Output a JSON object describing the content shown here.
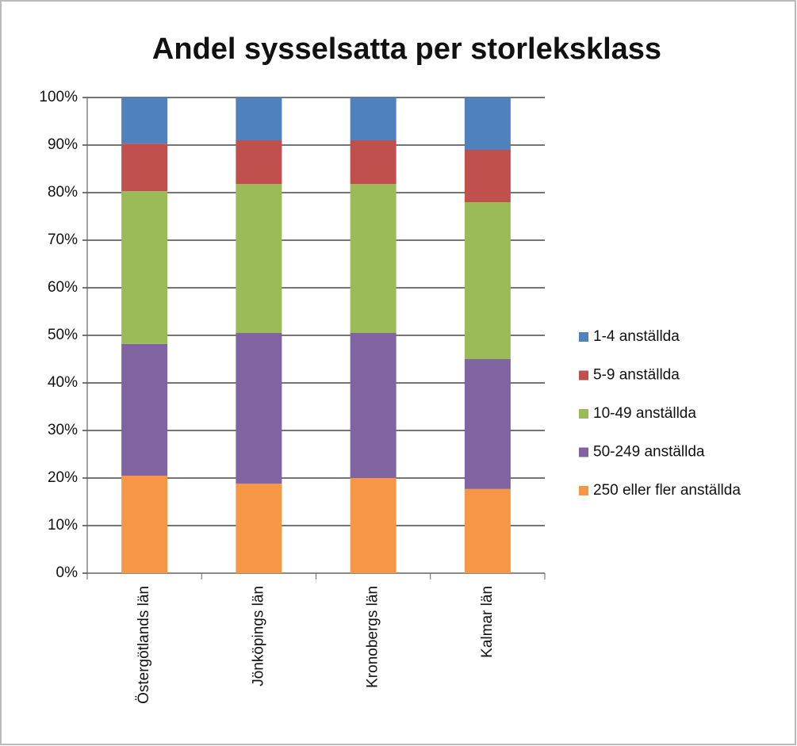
{
  "chart_data": {
    "type": "stacked_bar",
    "title": "Andel sysselsatta per storleksklass",
    "categories": [
      "Östergötlands län",
      "Jönköpings län",
      "Kronobergs län",
      "Kalmar län"
    ],
    "series": [
      {
        "name": "1-4 anställda",
        "color": "#4f81bd",
        "values": [
          9.7,
          9.0,
          9.0,
          11.0
        ]
      },
      {
        "name": "5-9 anställda",
        "color": "#c0504d",
        "values": [
          10.0,
          9.2,
          9.2,
          11.0
        ]
      },
      {
        "name": "10-49 anställda",
        "color": "#9bbb59",
        "values": [
          32.1,
          31.3,
          31.3,
          33.0
        ]
      },
      {
        "name": "50-249 anställda",
        "color": "#8064a2",
        "values": [
          27.7,
          31.7,
          30.5,
          27.3
        ]
      },
      {
        "name": "250 eller fler anställda",
        "color": "#f79646",
        "values": [
          20.5,
          18.8,
          20.0,
          17.7
        ]
      }
    ],
    "ylim": [
      0,
      100
    ],
    "yticks": [
      {
        "value": 0,
        "label": "0%"
      },
      {
        "value": 10,
        "label": "10%"
      },
      {
        "value": 20,
        "label": "20%"
      },
      {
        "value": 30,
        "label": "30%"
      },
      {
        "value": 40,
        "label": "40%"
      },
      {
        "value": 50,
        "label": "50%"
      },
      {
        "value": 60,
        "label": "60%"
      },
      {
        "value": 70,
        "label": "70%"
      },
      {
        "value": 80,
        "label": "80%"
      },
      {
        "value": 90,
        "label": "90%"
      },
      {
        "value": 100,
        "label": "100%"
      }
    ],
    "grid": true,
    "legend": "right"
  }
}
